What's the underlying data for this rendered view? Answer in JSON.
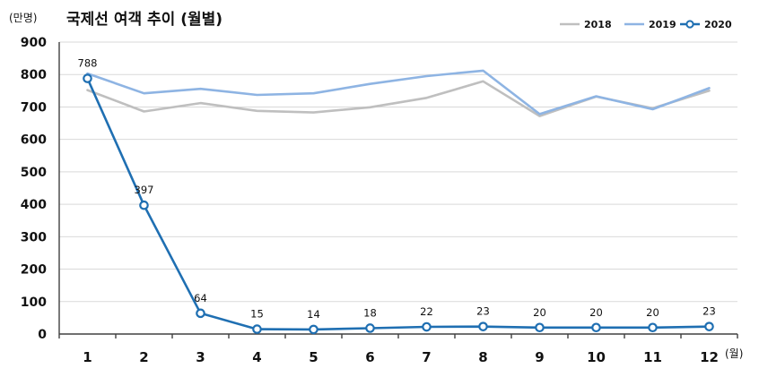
{
  "chart_data": {
    "type": "line",
    "title": "국제선 여객 추이 (월별)",
    "ylabel": "(만명)",
    "xlabel": "(월)",
    "ylim": [
      0,
      900
    ],
    "yticks": [
      0,
      100,
      200,
      300,
      400,
      500,
      600,
      700,
      800,
      900
    ],
    "categories": [
      "1",
      "2",
      "3",
      "4",
      "5",
      "6",
      "7",
      "8",
      "9",
      "10",
      "11",
      "12"
    ],
    "grid": true,
    "legend_position": "top-right",
    "series": [
      {
        "name": "2018",
        "color": "#bfbfbf",
        "values": [
          752,
          686,
          712,
          688,
          683,
          699,
          728,
          779,
          672,
          732,
          696,
          750
        ],
        "show_markers": false,
        "show_labels": false
      },
      {
        "name": "2019",
        "color": "#8eb4e3",
        "values": [
          803,
          742,
          756,
          737,
          742,
          771,
          795,
          812,
          678,
          733,
          693,
          758
        ],
        "show_markers": false,
        "show_labels": false
      },
      {
        "name": "2020",
        "color": "#1f6fb2",
        "values": [
          788,
          397,
          64,
          15,
          14,
          18,
          22,
          23,
          20,
          20,
          20,
          23
        ],
        "show_markers": true,
        "show_labels": true
      }
    ]
  }
}
